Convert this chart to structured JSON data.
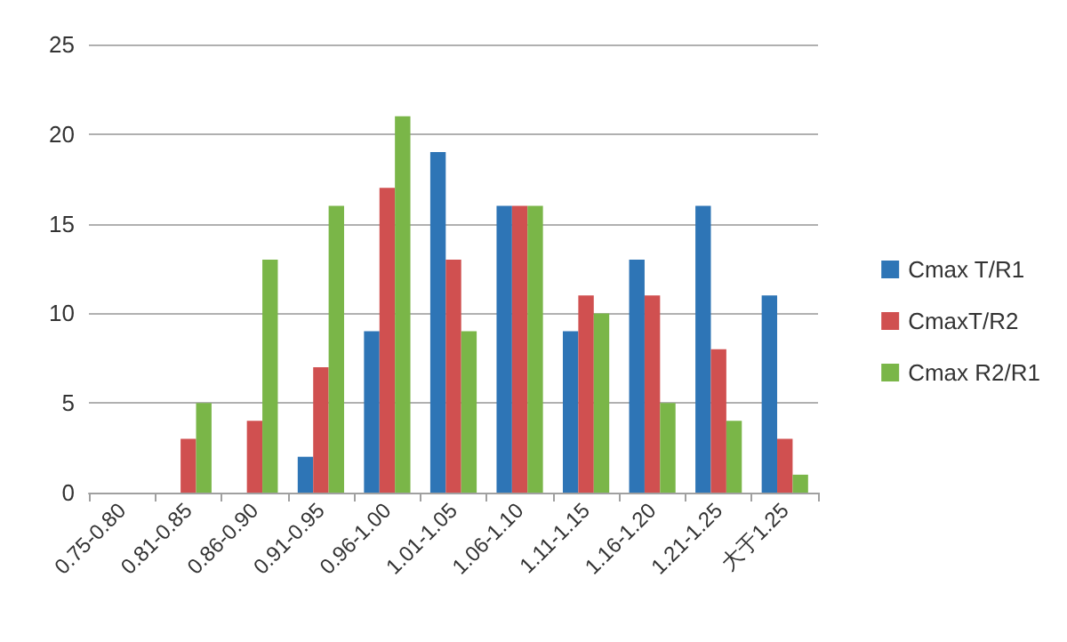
{
  "chart_data": {
    "type": "bar",
    "categories": [
      "0.75-0.80",
      "0.81-0.85",
      "0.86-0.90",
      "0.91-0.95",
      "0.96-1.00",
      "1.01-1.05",
      "1.06-1.10",
      "1.11-1.15",
      "1.16-1.20",
      "1.21-1.25",
      "大于1.25"
    ],
    "series": [
      {
        "name": "Cmax T/R1",
        "color": "#2e75b6",
        "values": [
          0,
          0,
          0,
          2,
          9,
          19,
          16,
          9,
          13,
          16,
          11
        ]
      },
      {
        "name": "CmaxT/R2",
        "color": "#d05050",
        "values": [
          0,
          3,
          4,
          7,
          17,
          13,
          16,
          11,
          11,
          8,
          3
        ]
      },
      {
        "name": "Cmax R2/R1",
        "color": "#7ab648",
        "values": [
          0,
          5,
          13,
          16,
          21,
          9,
          16,
          10,
          5,
          4,
          1
        ]
      }
    ],
    "ylim": [
      0,
      25
    ],
    "yticks": [
      0,
      5,
      10,
      15,
      20,
      25
    ],
    "grid": "y",
    "legend": "right"
  }
}
